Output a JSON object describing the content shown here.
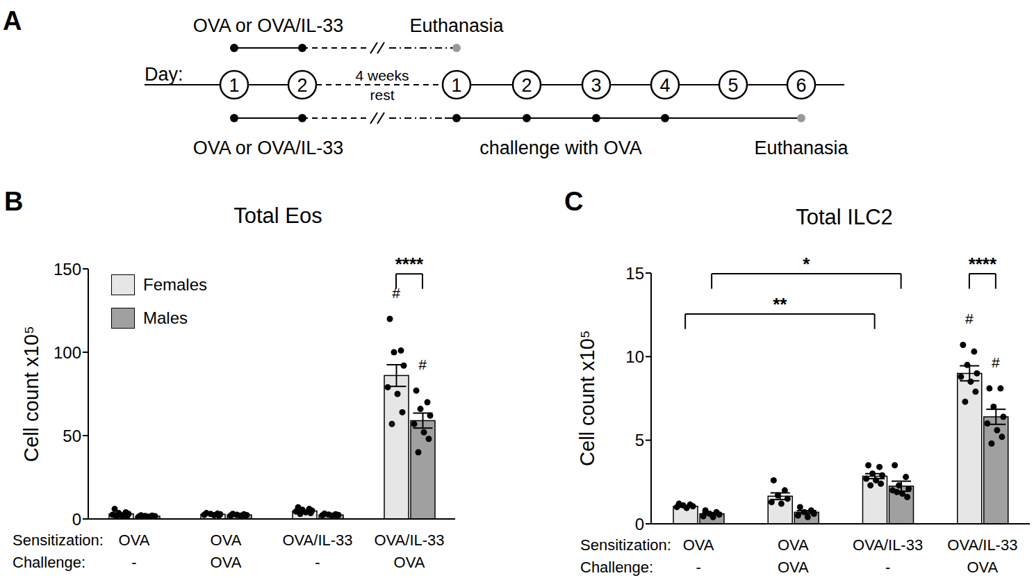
{
  "panel_a": {
    "panel": "A",
    "day_label": "Day:",
    "sensitization_days": [
      1,
      2
    ],
    "rest_label": [
      "4 weeks",
      "rest"
    ],
    "challenge_days": [
      1,
      2,
      3,
      4,
      5,
      6
    ],
    "top_row": {
      "treatment": "OVA or OVA/IL-33",
      "treatment_on": [
        1,
        2
      ],
      "end_label": "Euthanasia",
      "end_on": 1
    },
    "bottom_row": {
      "treatment": "OVA or OVA/IL-33",
      "treatment_on": [
        1,
        2
      ],
      "challenge_label": "challenge with OVA",
      "challenge_on": [
        1,
        2,
        3,
        4
      ],
      "end_label": "Euthanasia",
      "end_on": 6
    }
  },
  "chart_data": [
    {
      "type": "bar",
      "panel": "B",
      "title": "Total Eos",
      "y_label": "Cell count x10⁵",
      "category_rows": [
        "Sensitization:",
        "Challenge:"
      ],
      "categories": [
        [
          "OVA",
          "-"
        ],
        [
          "OVA",
          "OVA"
        ],
        [
          "OVA/IL-33",
          "-"
        ],
        [
          "OVA/IL-33",
          "OVA"
        ]
      ],
      "series": [
        {
          "name": "Females",
          "color": "#e6e6e6",
          "values": [
            3,
            2.8,
            4.8,
            86
          ],
          "errors": [
            0.6,
            0.2,
            0.5,
            6.5
          ],
          "points": [
            [
              6,
              4,
              3.5,
              3,
              2.5,
              2,
              1.5,
              1
            ],
            [
              3.5,
              3.2,
              3,
              2.8,
              2.5,
              2.3,
              2
            ],
            [
              7,
              6,
              5.5,
              5,
              4.5,
              4,
              3.5,
              3
            ],
            [
              120,
              101,
              100,
              92,
              79,
              75,
              64,
              57
            ]
          ]
        },
        {
          "name": "Males",
          "color": "#a0a0a0",
          "values": [
            1.7,
            2.4,
            2.4,
            59
          ],
          "errors": [
            0.15,
            0.15,
            0.2,
            4.5
          ],
          "points": [
            [
              2.2,
              2,
              1.8,
              1.7,
              1.5,
              1.4,
              1.2
            ],
            [
              3,
              2.8,
              2.5,
              2.3,
              2.1,
              2,
              1.8
            ],
            [
              3.2,
              2.8,
              2.6,
              2.4,
              2.2,
              2,
              1.8
            ],
            [
              77,
              70,
              66,
              62,
              57,
              52,
              48,
              40
            ]
          ]
        }
      ],
      "ylim": [
        0,
        150
      ],
      "yticks": [
        0,
        50,
        100,
        150
      ],
      "grid": false,
      "legend": "upper left",
      "comparisons": [
        {
          "label": "****",
          "groups": [
            3,
            3
          ],
          "series": [
            "Females",
            "Males"
          ],
          "y": 147
        }
      ],
      "markers": [
        {
          "label": "#",
          "group": 3,
          "series": "Females"
        },
        {
          "label": "#",
          "group": 3,
          "series": "Males"
        }
      ]
    },
    {
      "type": "bar",
      "panel": "C",
      "title": "Total ILC2",
      "y_label": "Cell count x10⁵",
      "category_rows": [
        "Sensitization:",
        "Challenge:"
      ],
      "categories": [
        [
          "OVA",
          "-"
        ],
        [
          "OVA",
          "OVA"
        ],
        [
          "OVA/IL-33",
          "-"
        ],
        [
          "OVA/IL-33",
          "OVA"
        ]
      ],
      "series": [
        {
          "name": "Females",
          "color": "#e6e6e6",
          "values": [
            1.05,
            1.65,
            2.85,
            9
          ],
          "errors": [
            0.05,
            0.2,
            0.15,
            0.45
          ],
          "points": [
            [
              1.2,
              1.15,
              1.1,
              1.05,
              1,
              0.95
            ],
            [
              2.6,
              2,
              1.7,
              1.5,
              1.3,
              1.2
            ],
            [
              3.5,
              3.4,
              3,
              2.9,
              2.7,
              2.6,
              2.4,
              2.3
            ],
            [
              10.7,
              10.3,
              9.5,
              9,
              8.8,
              8.5,
              7.9,
              7.3
            ]
          ]
        },
        {
          "name": "Males",
          "color": "#a0a0a0",
          "values": [
            0.6,
            0.7,
            2.25,
            6.4
          ],
          "errors": [
            0.07,
            0.09,
            0.3,
            0.45
          ],
          "points": [
            [
              0.8,
              0.7,
              0.6,
              0.55,
              0.45,
              0.4
            ],
            [
              1,
              0.8,
              0.7,
              0.6,
              0.5,
              0.4
            ],
            [
              3.5,
              2.8,
              2.3,
              2.1,
              2,
              1.8,
              1.6,
              1.9
            ],
            [
              8.1,
              8.1,
              7,
              6.4,
              6,
              5.6,
              5.2,
              4.8
            ]
          ]
        }
      ],
      "ylim": [
        0,
        15
      ],
      "yticks": [
        0,
        5,
        10,
        15
      ],
      "grid": false,
      "comparisons": [
        {
          "label": "**",
          "groups": [
            0,
            2
          ],
          "series": [
            "Females",
            "Females"
          ],
          "y": 12.55
        },
        {
          "label": "*",
          "groups": [
            0,
            2
          ],
          "series": [
            "Males",
            "Males"
          ],
          "y": 14.96
        },
        {
          "label": "****",
          "groups": [
            3,
            3
          ],
          "series": [
            "Females",
            "Males"
          ],
          "y": 14.96
        }
      ],
      "markers": [
        {
          "label": "#",
          "group": 3,
          "series": "Females"
        },
        {
          "label": "#",
          "group": 3,
          "series": "Males"
        }
      ]
    }
  ]
}
